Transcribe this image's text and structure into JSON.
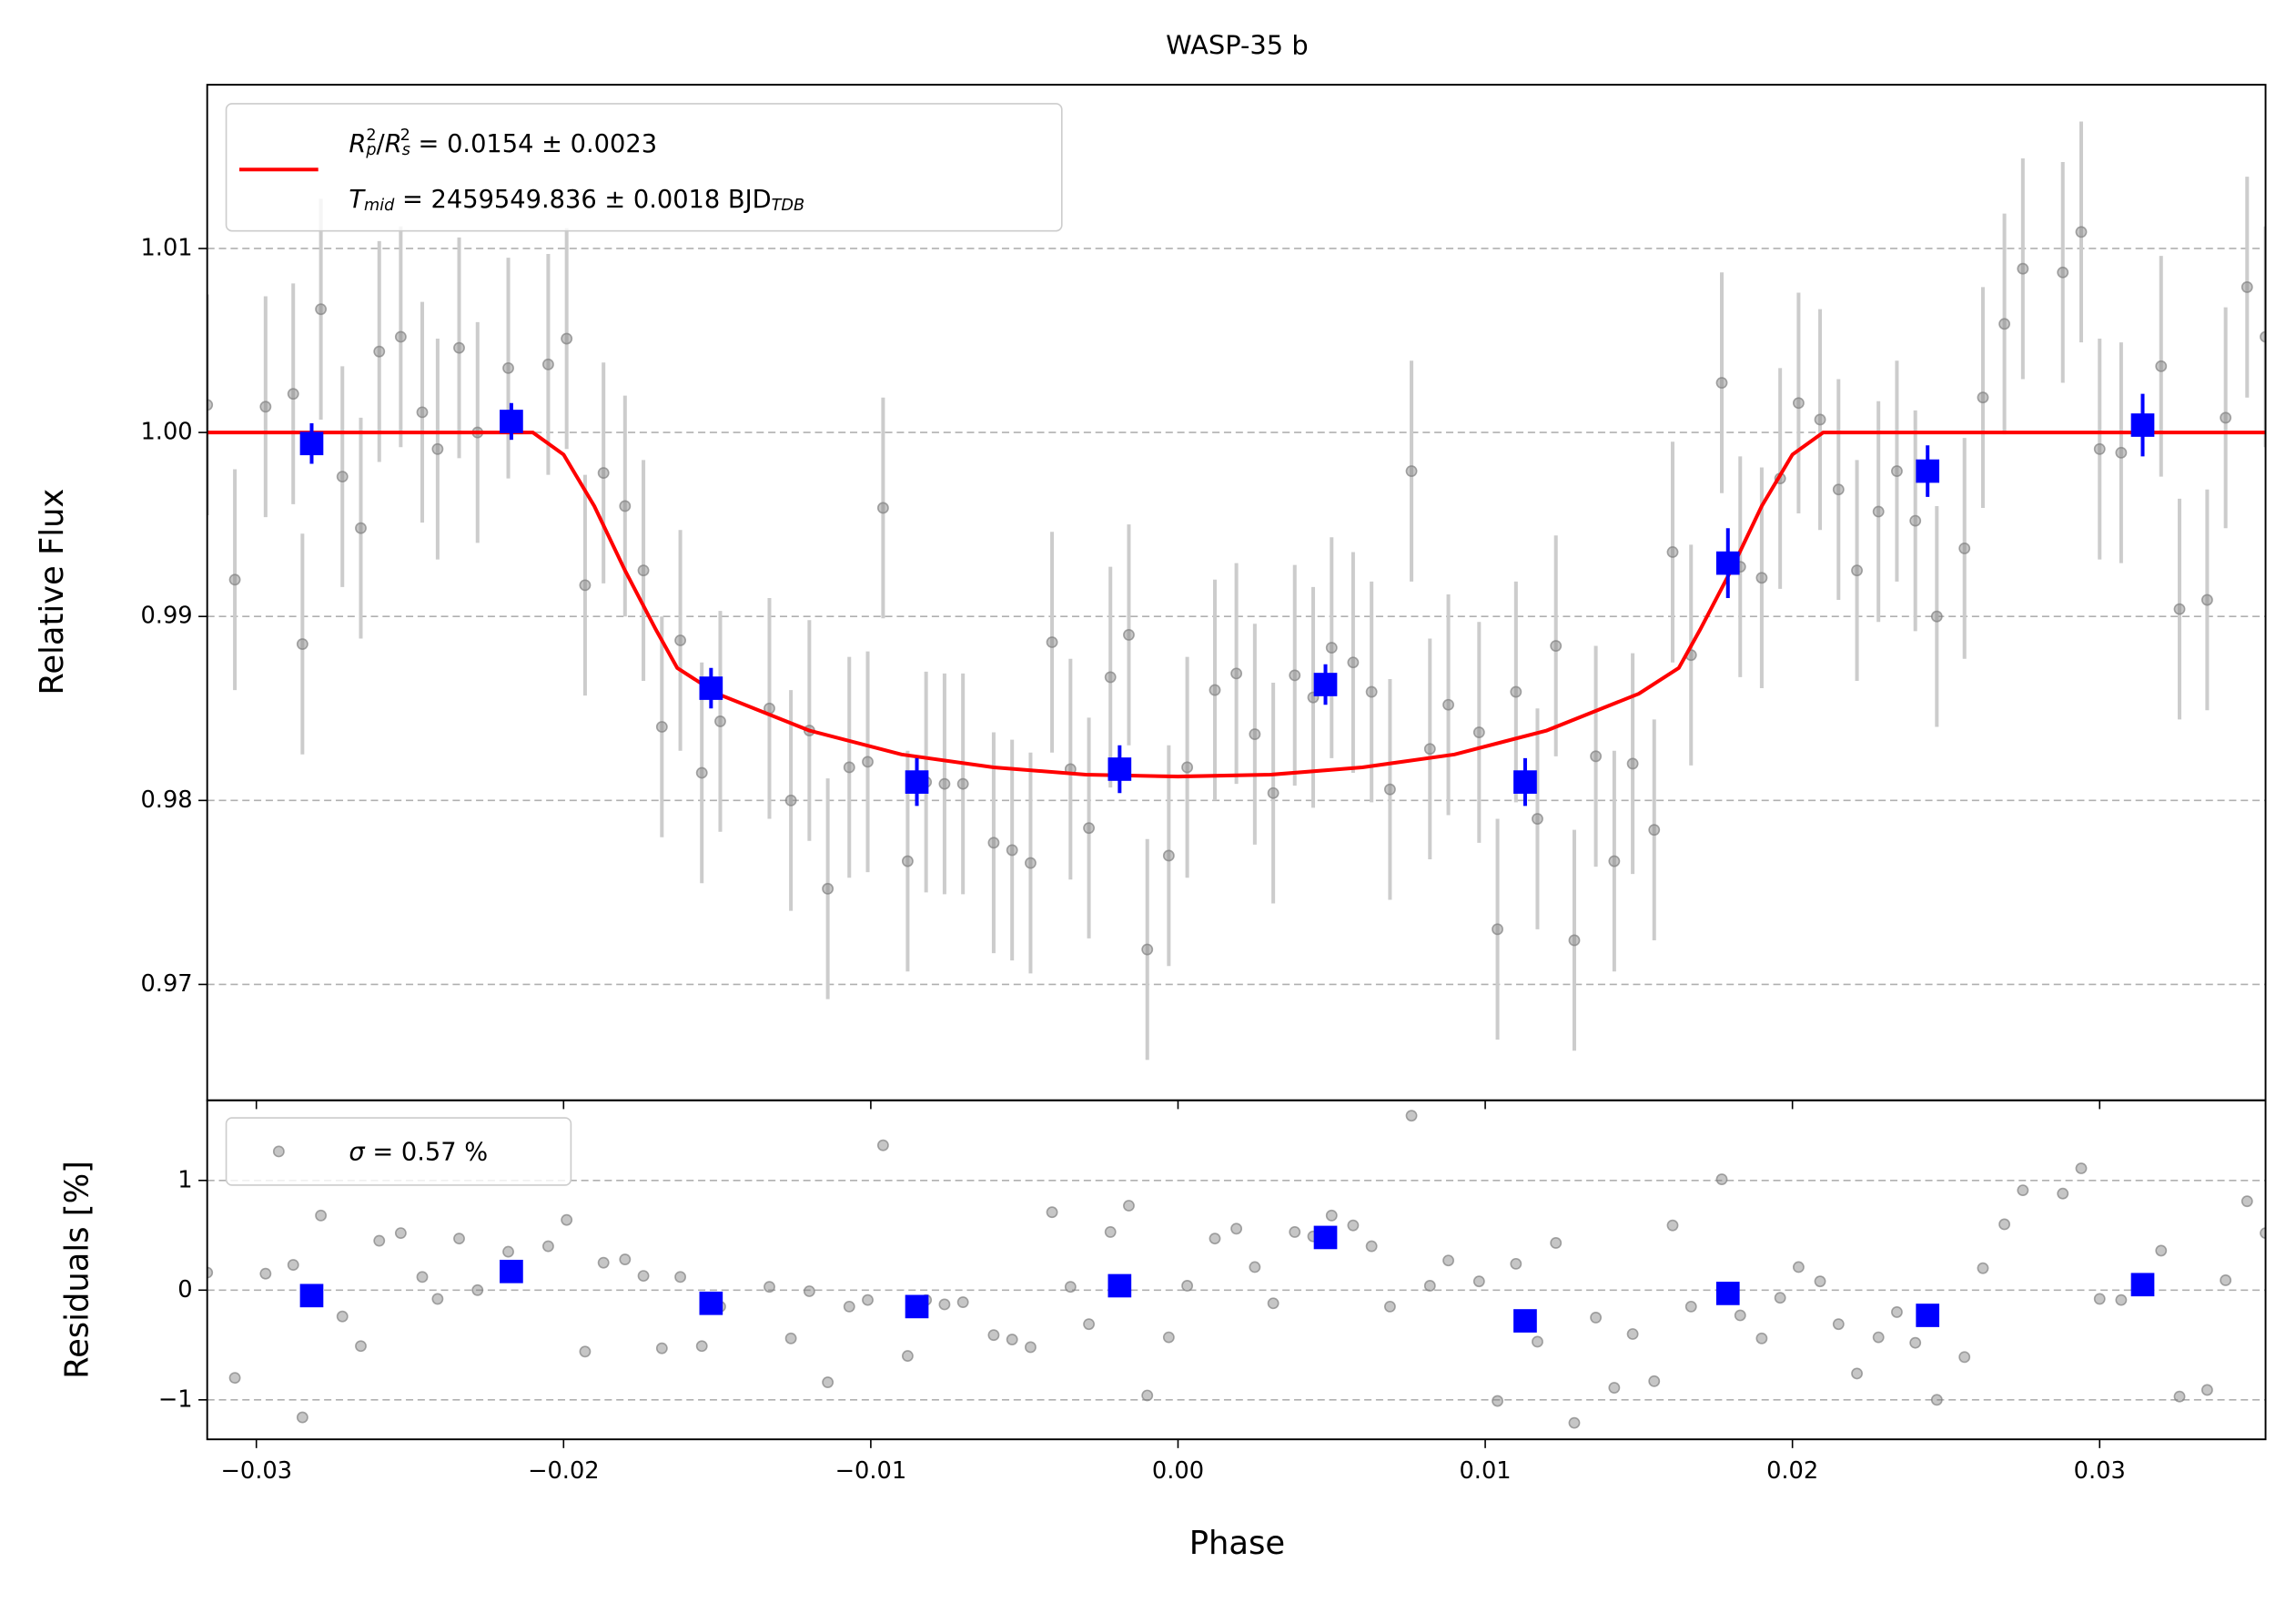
{
  "chart_data": {
    "type": "scatter",
    "title": "WASP-35 b",
    "xlabel": "Phase",
    "xlim": [
      -0.0316,
      0.0354
    ],
    "xticks": [
      {
        "value": -0.03,
        "label": "−0.03"
      },
      {
        "value": -0.02,
        "label": "−0.02"
      },
      {
        "value": -0.01,
        "label": "−0.01"
      },
      {
        "value": 0,
        "label": "0.00"
      },
      {
        "value": 0.01,
        "label": "0.01"
      },
      {
        "value": 0.02,
        "label": "0.02"
      },
      {
        "value": 0.03,
        "label": "0.03"
      }
    ],
    "panels": [
      {
        "ylabel": "Relative Flux",
        "ylim": [
          0.9637,
          1.0189
        ],
        "yticks": [
          0.97,
          0.98,
          0.99,
          {
            "value": 1.0,
            "label": "1.00"
          },
          1.01
        ],
        "grid": true,
        "series": [
          {
            "type": "scatter",
            "marker": "o",
            "color": "#808080",
            "ecolor": "#cccccc",
            "error": 0.006,
            "x": [
              -0.0316,
              -0.0307,
              -0.0297,
              -0.0288,
              -0.0285,
              -0.0279,
              -0.0272,
              -0.0266,
              -0.026,
              -0.0253,
              -0.0246,
              -0.0241,
              -0.0234,
              -0.0228,
              -0.0218,
              -0.0205,
              -0.0199,
              -0.0193,
              -0.0187,
              -0.018,
              -0.0174,
              -0.0168,
              -0.0162,
              -0.0155,
              -0.0149,
              -0.0133,
              -0.0126,
              -0.012,
              -0.0114,
              -0.0107,
              -0.0101,
              -0.0096,
              -0.0088,
              -0.0082,
              -0.0076,
              -0.007,
              -0.006,
              -0.0054,
              -0.0048,
              -0.0041,
              -0.0035,
              -0.0029,
              -0.0022,
              -0.0016,
              -0.001,
              -0.0003,
              0.0003,
              0.0012,
              0.0019,
              0.0025,
              0.0031,
              0.0038,
              0.0044,
              0.005,
              0.0057,
              0.0063,
              0.0069,
              0.0076,
              0.0082,
              0.0088,
              0.0098,
              0.0104,
              0.011,
              0.0117,
              0.0123,
              0.0129,
              0.0136,
              0.0142,
              0.0148,
              0.0155,
              0.0161,
              0.0167,
              0.0177,
              0.0183,
              0.019,
              0.0196,
              0.0202,
              0.0209,
              0.0215,
              0.0221,
              0.0228,
              0.0234,
              0.024,
              0.0247,
              0.0256,
              0.0262,
              0.0269,
              0.0275,
              0.0288,
              0.0294,
              0.03,
              0.0307,
              0.032,
              0.0326,
              0.0335,
              0.0341,
              0.0348,
              0.0354
            ],
            "values": [
              1.0015,
              0.992,
              1.0014,
              1.0021,
              0.9885,
              1.0067,
              0.9976,
              0.9948,
              1.0044,
              1.0052,
              1.0011,
              0.9991,
              1.0046,
              1.0,
              1.0035,
              1.0037,
              1.0051,
              0.9917,
              0.9978,
              0.996,
              0.9925,
              0.984,
              0.9887,
              0.9815,
              0.9843,
              0.985,
              0.98,
              0.9838,
              0.9752,
              0.9818,
              0.9821,
              0.9959,
              0.9767,
              0.981,
              0.9809,
              0.9809,
              0.9777,
              0.9773,
              0.9766,
              0.9886,
              0.9817,
              0.9785,
              0.9867,
              0.989,
              0.9719,
              0.977,
              0.9818,
              0.986,
              0.9869,
              0.9836,
              0.9804,
              0.9868,
              0.9856,
              0.9883,
              0.9875,
              0.9859,
              0.9806,
              0.9979,
              0.9828,
              0.9852,
              0.9837,
              0.973,
              0.9859,
              0.979,
              0.9884,
              0.9724,
              0.9824,
              0.9767,
              0.982,
              0.9784,
              0.9935,
              0.9879,
              1.0027,
              0.9927,
              0.9921,
              0.9975,
              1.0016,
              1.0007,
              0.9969,
              0.9925,
              0.9957,
              0.9979,
              0.9952,
              0.99,
              0.9937,
              1.0019,
              1.0059,
              1.0089,
              1.0087,
              1.0109,
              0.9991,
              0.9989,
              1.0036,
              0.9904,
              0.9909,
              1.0008,
              1.0079,
              1.0052
            ]
          },
          {
            "type": "line",
            "color": "#ff0000",
            "name": [
              [
                "R",
                "p",
                "2",
                "/",
                "R",
                "s",
                "2",
                " = 0.0154 ± 0.0023"
              ],
              [
                "T",
                "mid",
                " = 2459549.836 ± 0.0018 BJD",
                "TDB"
              ]
            ],
            "x": [
              -0.0316,
              -0.021,
              -0.02,
              -0.019,
              -0.018,
              -0.017,
              -0.0163,
              -0.015,
              -0.012,
              -0.009,
              -0.006,
              -0.003,
              0.0,
              0.003,
              0.006,
              0.009,
              0.012,
              0.015,
              0.0163,
              0.017,
              0.018,
              0.019,
              0.02,
              0.021,
              0.0354
            ],
            "values": [
              1.0,
              1.0,
              0.9988,
              0.996,
              0.9925,
              0.9893,
              0.9872,
              0.9858,
              0.9838,
              0.9825,
              0.9818,
              0.9814,
              0.9813,
              0.9814,
              0.9818,
              0.9825,
              0.9838,
              0.9858,
              0.9872,
              0.9893,
              0.9925,
              0.996,
              0.9988,
              1.0,
              1.0
            ]
          },
          {
            "type": "scatter",
            "marker": "s",
            "color": "#0000ff",
            "ecolor": "#0000ff",
            "x": [
              -0.0282,
              -0.0217,
              -0.0152,
              -0.0085,
              -0.0019,
              0.0048,
              0.0113,
              0.0179,
              0.0244,
              0.0314
            ],
            "values": [
              0.9994,
              1.0006,
              0.9861,
              0.981,
              0.9817,
              0.9863,
              0.981,
              0.9929,
              0.9979,
              1.0004
            ],
            "errors": [
              0.0011,
              0.001,
              0.0011,
              0.0013,
              0.0013,
              0.0011,
              0.0013,
              0.0019,
              0.0014,
              0.0017
            ]
          }
        ]
      },
      {
        "ylabel": "Residuals [%]",
        "ylim": [
          -1.36,
          1.73
        ],
        "yticks": [
          {
            "value": -1,
            "label": "−1"
          },
          0,
          1
        ],
        "grid": true,
        "series": [
          {
            "type": "scatter",
            "marker": "o",
            "color": "#808080",
            "name": [
              "σ",
              " = 0.57 %"
            ],
            "x": [
              -0.0316,
              -0.0307,
              -0.0297,
              -0.0288,
              -0.0285,
              -0.0279,
              -0.0272,
              -0.0266,
              -0.026,
              -0.0253,
              -0.0246,
              -0.0241,
              -0.0234,
              -0.0228,
              -0.0218,
              -0.0205,
              -0.0199,
              -0.0193,
              -0.0187,
              -0.018,
              -0.0174,
              -0.0168,
              -0.0162,
              -0.0155,
              -0.0149,
              -0.0133,
              -0.0126,
              -0.012,
              -0.0114,
              -0.0107,
              -0.0101,
              -0.0096,
              -0.0088,
              -0.0082,
              -0.0076,
              -0.007,
              -0.006,
              -0.0054,
              -0.0048,
              -0.0041,
              -0.0035,
              -0.0029,
              -0.0022,
              -0.0016,
              -0.001,
              -0.0003,
              0.0003,
              0.0012,
              0.0019,
              0.0025,
              0.0031,
              0.0038,
              0.0044,
              0.005,
              0.0057,
              0.0063,
              0.0069,
              0.0076,
              0.0082,
              0.0088,
              0.0098,
              0.0104,
              0.011,
              0.0117,
              0.0123,
              0.0129,
              0.0136,
              0.0142,
              0.0148,
              0.0155,
              0.0161,
              0.0167,
              0.0177,
              0.0183,
              0.019,
              0.0196,
              0.0202,
              0.0209,
              0.0215,
              0.0221,
              0.0228,
              0.0234,
              0.024,
              0.0247,
              0.0256,
              0.0262,
              0.0269,
              0.0275,
              0.0288,
              0.0294,
              0.03,
              0.0307,
              0.032,
              0.0326,
              0.0335,
              0.0341,
              0.0348,
              0.0354
            ],
            "values": [
              0.16,
              -0.8,
              0.15,
              0.23,
              -1.16,
              0.68,
              -0.24,
              -0.51,
              0.45,
              0.52,
              0.12,
              -0.08,
              0.47,
              0.0,
              0.35,
              0.4,
              0.64,
              -0.56,
              0.25,
              0.28,
              0.13,
              -0.53,
              0.12,
              -0.51,
              -0.15,
              0.03,
              -0.44,
              -0.01,
              -0.84,
              -0.15,
              -0.09,
              1.32,
              -0.6,
              -0.09,
              -0.13,
              -0.11,
              -0.41,
              -0.45,
              -0.52,
              0.71,
              0.03,
              -0.31,
              0.53,
              0.77,
              -0.96,
              -0.43,
              0.04,
              0.47,
              0.56,
              0.21,
              -0.12,
              0.53,
              0.49,
              0.68,
              0.59,
              0.4,
              -0.15,
              1.59,
              0.04,
              0.27,
              0.08,
              -1.01,
              0.24,
              -0.47,
              0.43,
              -1.21,
              -0.25,
              -0.89,
              -0.4,
              -0.83,
              0.59,
              -0.15,
              1.01,
              -0.23,
              -0.44,
              -0.07,
              0.21,
              0.08,
              -0.31,
              -0.76,
              -0.43,
              -0.2,
              -0.48,
              -1.0,
              -0.61,
              0.2,
              0.6,
              0.91,
              0.88,
              1.11,
              -0.08,
              -0.09,
              0.36,
              -0.97,
              -0.91,
              0.09,
              0.81,
              0.52
            ]
          },
          {
            "type": "scatter",
            "marker": "s",
            "color": "#0000ff",
            "x": [
              -0.0282,
              -0.0217,
              -0.0152,
              -0.0085,
              -0.0019,
              0.0048,
              0.0113,
              0.0179,
              0.0244,
              0.0314
            ],
            "values": [
              -0.05,
              0.17,
              -0.12,
              -0.15,
              0.04,
              0.48,
              -0.28,
              -0.03,
              -0.23,
              0.05
            ]
          }
        ]
      }
    ]
  }
}
